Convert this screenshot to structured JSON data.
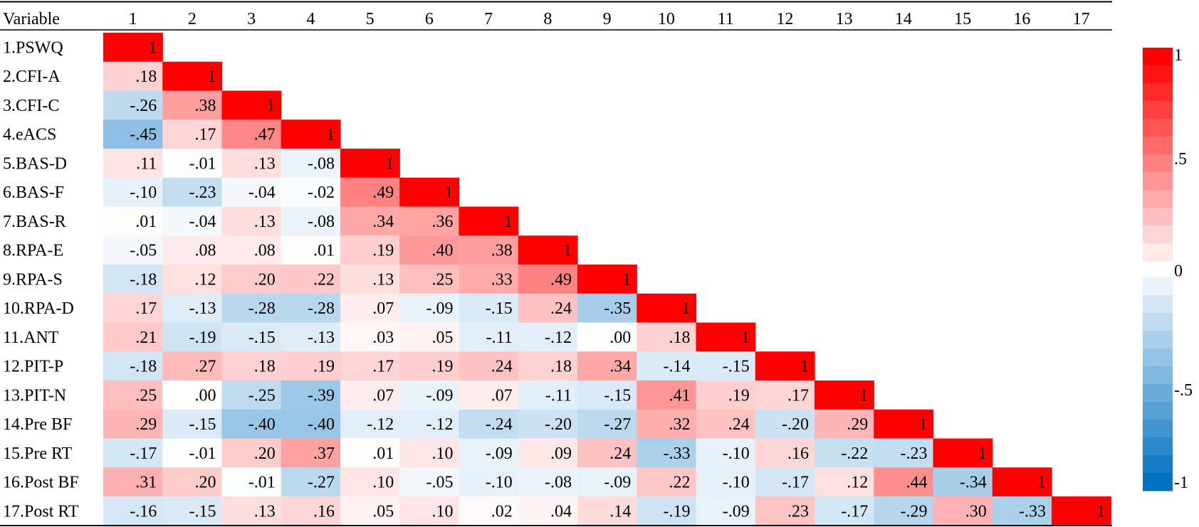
{
  "chart_data": {
    "type": "heatmap",
    "title": "",
    "corner_label": "Variable",
    "column_labels": [
      "1",
      "2",
      "3",
      "4",
      "5",
      "6",
      "7",
      "8",
      "9",
      "10",
      "11",
      "12",
      "13",
      "14",
      "15",
      "16",
      "17"
    ],
    "row_labels": [
      "1.PSWQ",
      "2.CFI-A",
      "3.CFI-C",
      "4.eACS",
      "5.BAS-D",
      "6.BAS-F",
      "7.BAS-R",
      "8.RPA-E",
      "9.RPA-S",
      "10.RPA-D",
      "11.ANT",
      "12.PIT-P",
      "13.PIT-N",
      "14.Pre BF",
      "15.Pre RT",
      "16.Post BF",
      "17.Post RT"
    ],
    "rows": [
      [
        "1"
      ],
      [
        ".18",
        "1"
      ],
      [
        "-.26",
        ".38",
        "1"
      ],
      [
        "-.45",
        ".17",
        ".47",
        "1"
      ],
      [
        ".11",
        "-.01",
        ".13",
        "-.08",
        "1"
      ],
      [
        "-.10",
        "-.23",
        "-.04",
        "-.02",
        ".49",
        "1"
      ],
      [
        ".01",
        "-.04",
        ".13",
        "-.08",
        ".34",
        ".36",
        "1"
      ],
      [
        "-.05",
        ".08",
        ".08",
        ".01",
        ".19",
        ".40",
        ".38",
        "1"
      ],
      [
        "-.18",
        ".12",
        ".20",
        ".22",
        ".13",
        ".25",
        ".33",
        ".49",
        "1"
      ],
      [
        ".17",
        "-.13",
        "-.28",
        "-.28",
        ".07",
        "-.09",
        "-.15",
        ".24",
        "-.35",
        "1"
      ],
      [
        ".21",
        "-.19",
        "-.15",
        "-.13",
        ".03",
        ".05",
        "-.11",
        "-.12",
        ".00",
        ".18",
        "1"
      ],
      [
        "-.18",
        ".27",
        ".18",
        ".19",
        ".17",
        ".19",
        ".24",
        ".18",
        ".34",
        "-.14",
        "-.15",
        "1"
      ],
      [
        ".25",
        ".00",
        "-.25",
        "-.39",
        ".07",
        "-.09",
        ".07",
        "-.11",
        "-.15",
        ".41",
        ".19",
        ".17",
        "1"
      ],
      [
        ".29",
        "-.15",
        "-.40",
        "-.40",
        "-.12",
        "-.12",
        "-.24",
        "-.20",
        "-.27",
        ".32",
        ".24",
        "-.20",
        ".29",
        "1"
      ],
      [
        "-.17",
        "-.01",
        ".20",
        ".37",
        ".01",
        ".10",
        "-.09",
        ".09",
        ".24",
        "-.33",
        "-.10",
        ".16",
        "-.22",
        "-.23",
        "1"
      ],
      [
        ".31",
        ".20",
        "-.01",
        "-.27",
        ".10",
        "-.05",
        "-.10",
        "-.08",
        "-.09",
        ".22",
        "-.10",
        "-.17",
        ".12",
        ".44",
        "-.34",
        "1"
      ],
      [
        "-.16",
        "-.15",
        ".13",
        ".16",
        ".05",
        ".10",
        ".02",
        ".04",
        ".14",
        "-.19",
        "-.09",
        ".23",
        "-.17",
        "-.29",
        ".30",
        "-.33",
        "1"
      ]
    ],
    "color_scale": {
      "min": -1,
      "max": 1,
      "positive_color": "#ff0000",
      "negative_color": "#0070c0",
      "neutral_color": "#ffffff",
      "tick_labels": [
        "1",
        ".5",
        "0",
        "-.5",
        "-1"
      ]
    }
  }
}
